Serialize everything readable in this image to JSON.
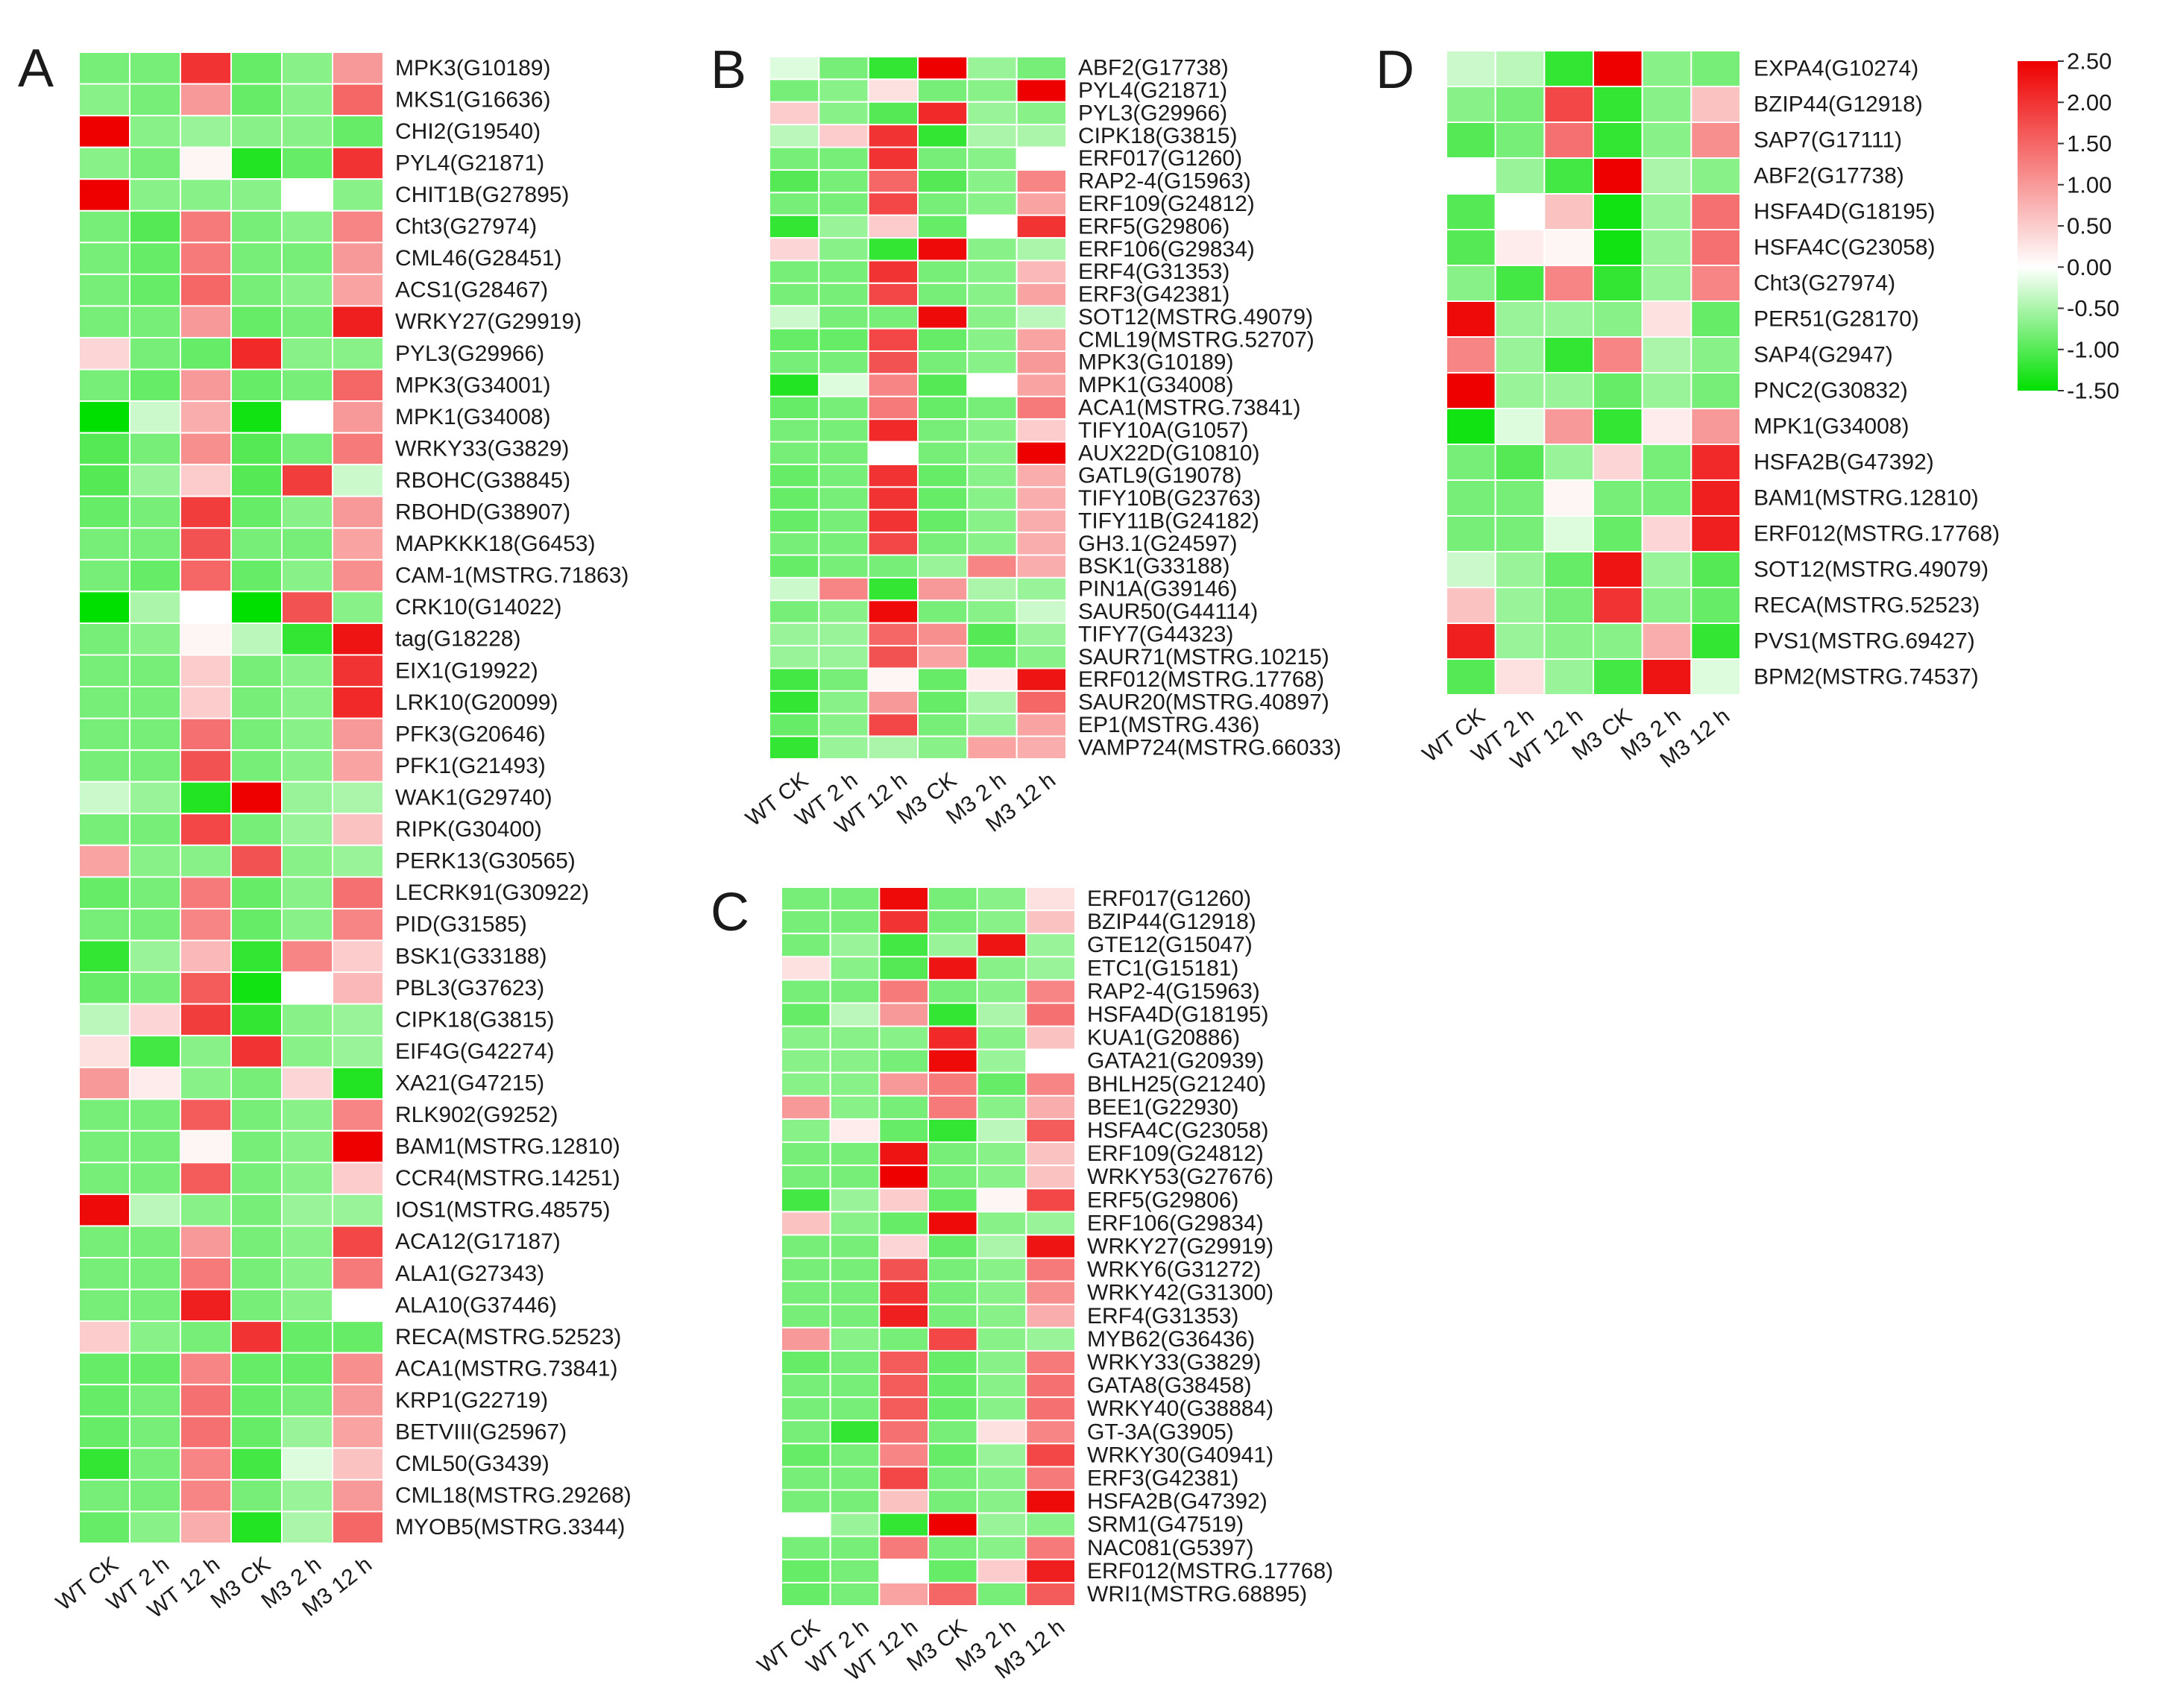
{
  "figure": {
    "colorscale": {
      "min": -1.5,
      "mid": 0,
      "max": 2.5,
      "low_color": "#00e000",
      "mid_color": "#ffffff",
      "high_color": "#ee0000",
      "ticks": [
        "2.50",
        "2.00",
        "1.50",
        "1.00",
        "0.50",
        "0.00",
        "-0.50",
        "-1.00",
        "-1.50"
      ]
    }
  },
  "chart_data": [
    {
      "type": "heatmap",
      "panel": "A",
      "title": "A",
      "columns": [
        "WT  CK",
        "WT 2 h",
        "WT 12 h",
        "M3  CK",
        "M3 2 h",
        "M3 12 h"
      ],
      "rows": [
        "MPK3(G10189)",
        "MKS1(G16636)",
        "CHI2(G19540)",
        "PYL4(G21871)",
        "CHIT1B(G27895)",
        "Cht3(G27974)",
        "CML46(G28451)",
        "ACS1(G28467)",
        "WRKY27(G29919)",
        "PYL3(G29966)",
        "MPK3(G34001)",
        "MPK1(G34008)",
        "WRKY33(G3829)",
        "RBOHC(G38845)",
        "RBOHD(G38907)",
        "MAPKKK18(G6453)",
        "CAM-1(MSTRG.71863)",
        "CRK10(G14022)",
        "tag(G18228)",
        "EIX1(G19922)",
        "LRK10(G20099)",
        "PFK3(G20646)",
        "PFK1(G21493)",
        "WAK1(G29740)",
        "RIPK(G30400)",
        "PERK13(G30565)",
        "LECRK91(G30922)",
        "PID(G31585)",
        "BSK1(G33188)",
        "PBL3(G37623)",
        "CIPK18(G3815)",
        "EIF4G(G42274)",
        "XA21(G47215)",
        "RLK902(G9252)",
        "BAM1(MSTRG.12810)",
        "CCR4(MSTRG.14251)",
        "IOS1(MSTRG.48575)",
        "ACA12(G17187)",
        "ALA1(G27343)",
        "ALA10(G37446)",
        "RECA(MSTRG.52523)",
        "ACA1(MSTRG.73841)",
        "KRP1(G22719)",
        "BETVIII(G25967)",
        "CML50(G3439)",
        "CML18(MSTRG.29268)",
        "MYOB5(MSTRG.3344)"
      ],
      "values": [
        [
          -0.8,
          -0.8,
          2.0,
          -0.9,
          -0.7,
          1.0
        ],
        [
          -0.7,
          -0.8,
          1.0,
          -0.9,
          -0.7,
          1.5
        ],
        [
          2.5,
          -0.7,
          -0.6,
          -0.7,
          -0.7,
          -0.9
        ],
        [
          -0.7,
          -0.8,
          0.1,
          -1.3,
          -0.9,
          2.0
        ],
        [
          2.5,
          -0.7,
          -0.7,
          -0.7,
          0.0,
          -0.7
        ],
        [
          -0.8,
          -1.0,
          1.3,
          -0.8,
          -0.7,
          1.2
        ],
        [
          -0.8,
          -0.9,
          1.3,
          -0.8,
          -0.8,
          1.0
        ],
        [
          -0.8,
          -0.9,
          1.5,
          -0.8,
          -0.7,
          0.9
        ],
        [
          -0.8,
          -0.8,
          1.0,
          -0.9,
          -0.8,
          2.2
        ],
        [
          0.4,
          -0.8,
          -0.9,
          2.1,
          -0.7,
          -0.7
        ],
        [
          -0.8,
          -0.9,
          1.0,
          -0.9,
          -0.8,
          1.5
        ],
        [
          -1.5,
          -0.3,
          0.8,
          -1.4,
          0.0,
          1.0
        ],
        [
          -1.0,
          -0.8,
          1.1,
          -1.0,
          -0.8,
          1.3
        ],
        [
          -1.0,
          -0.6,
          0.5,
          -1.0,
          1.9,
          -0.3
        ],
        [
          -0.9,
          -0.8,
          1.9,
          -0.9,
          -0.7,
          1.0
        ],
        [
          -0.8,
          -0.8,
          1.7,
          -0.8,
          -0.8,
          0.9
        ],
        [
          -0.8,
          -0.9,
          1.5,
          -0.9,
          -0.7,
          1.1
        ],
        [
          -1.5,
          -0.5,
          0.0,
          -1.5,
          1.7,
          -0.7
        ],
        [
          -0.8,
          -0.7,
          0.1,
          -0.4,
          -1.2,
          2.3
        ],
        [
          -0.8,
          -0.8,
          0.5,
          -0.8,
          -0.7,
          2.0
        ],
        [
          -0.8,
          -0.8,
          0.5,
          -0.8,
          -0.7,
          2.1
        ],
        [
          -0.8,
          -0.8,
          1.4,
          -0.8,
          -0.7,
          1.0
        ],
        [
          -0.8,
          -0.8,
          1.7,
          -0.8,
          -0.7,
          0.9
        ],
        [
          -0.3,
          -0.6,
          -1.3,
          2.5,
          -0.6,
          -0.5
        ],
        [
          -0.8,
          -0.8,
          1.8,
          -0.8,
          -0.6,
          0.6
        ],
        [
          0.9,
          -0.7,
          -0.7,
          1.7,
          -0.7,
          -0.6
        ],
        [
          -0.9,
          -0.8,
          1.3,
          -0.9,
          -0.7,
          1.4
        ],
        [
          -0.8,
          -0.8,
          1.2,
          -0.9,
          -0.7,
          1.2
        ],
        [
          -1.2,
          -0.6,
          0.7,
          -1.2,
          1.2,
          0.5
        ],
        [
          -0.9,
          -0.8,
          1.6,
          -1.4,
          0.0,
          0.7
        ],
        [
          -0.4,
          0.4,
          1.9,
          -1.2,
          -0.7,
          -0.6
        ],
        [
          0.3,
          -1.1,
          -0.7,
          2.0,
          -0.7,
          -0.6
        ],
        [
          1.0,
          0.2,
          -0.7,
          -0.8,
          0.4,
          -1.3
        ],
        [
          -0.8,
          -0.8,
          1.6,
          -0.8,
          -0.7,
          1.2
        ],
        [
          -0.8,
          -0.8,
          0.1,
          -0.8,
          -0.7,
          2.5
        ],
        [
          -0.8,
          -0.8,
          1.6,
          -0.8,
          -0.7,
          0.5
        ],
        [
          2.4,
          -0.4,
          -0.7,
          -0.8,
          -0.6,
          -0.6
        ],
        [
          -0.8,
          -0.8,
          1.0,
          -0.8,
          -0.7,
          1.8
        ],
        [
          -0.8,
          -0.8,
          1.3,
          -0.8,
          -0.7,
          1.3
        ],
        [
          -0.8,
          -0.8,
          2.2,
          -0.8,
          -0.7,
          0.0
        ],
        [
          0.5,
          -0.7,
          -0.8,
          2.0,
          -0.9,
          -0.9
        ],
        [
          -0.9,
          -0.9,
          1.2,
          -0.9,
          -0.9,
          1.1
        ],
        [
          -0.9,
          -0.8,
          1.4,
          -0.9,
          -0.8,
          1.0
        ],
        [
          -0.9,
          -0.8,
          1.4,
          -0.9,
          -0.6,
          0.9
        ],
        [
          -1.2,
          -0.8,
          1.2,
          -1.1,
          -0.2,
          0.6
        ],
        [
          -0.8,
          -0.8,
          1.2,
          -0.8,
          -0.6,
          1.0
        ],
        [
          -0.9,
          -0.7,
          0.8,
          -1.3,
          -0.5,
          1.5
        ]
      ]
    },
    {
      "type": "heatmap",
      "panel": "B",
      "title": "B",
      "columns": [
        "WT  CK",
        "WT 2 h",
        "WT 12 h",
        "M3  CK",
        "M3 2 h",
        "M3 12 h"
      ],
      "rows": [
        "ABF2(G17738)",
        "PYL4(G21871)",
        "PYL3(G29966)",
        "CIPK18(G3815)",
        "ERF017(G1260)",
        "RAP2-4(G15963)",
        "ERF109(G24812)",
        "ERF5(G29806)",
        "ERF106(G29834)",
        "ERF4(G31353)",
        "ERF3(G42381)",
        "SOT12(MSTRG.49079)",
        "CML19(MSTRG.52707)",
        "MPK3(G10189)",
        "MPK1(G34008)",
        "ACA1(MSTRG.73841)",
        "TIFY10A(G1057)",
        "AUX22D(G10810)",
        "GATL9(G19078)",
        "TIFY10B(G23763)",
        "TIFY11B(G24182)",
        "GH3.1(G24597)",
        "BSK1(G33188)",
        "PIN1A(G39146)",
        "SAUR50(G44114)",
        "TIFY7(G44323)",
        "SAUR71(MSTRG.10215)",
        "ERF012(MSTRG.17768)",
        "SAUR20(MSTRG.40897)",
        "EP1(MSTRG.436)",
        "VAMP724(MSTRG.66033)"
      ],
      "values": [
        [
          -0.2,
          -0.8,
          -1.2,
          2.5,
          -0.6,
          -0.8
        ],
        [
          -0.8,
          -0.7,
          0.3,
          -0.8,
          -0.7,
          2.5
        ],
        [
          0.5,
          -0.7,
          -1.0,
          2.1,
          -0.6,
          -0.7
        ],
        [
          -0.4,
          0.5,
          2.0,
          -1.2,
          -0.5,
          -0.5
        ],
        [
          -0.8,
          -0.8,
          2.0,
          -0.8,
          -0.7,
          0.0
        ],
        [
          -1.0,
          -0.8,
          1.5,
          -1.0,
          -0.7,
          1.2
        ],
        [
          -0.8,
          -0.8,
          1.8,
          -0.8,
          -0.7,
          0.9
        ],
        [
          -1.2,
          -0.6,
          0.5,
          -0.9,
          0.0,
          2.0
        ],
        [
          0.4,
          -0.7,
          -1.2,
          2.4,
          -0.7,
          -0.5
        ],
        [
          -0.8,
          -0.8,
          2.0,
          -0.8,
          -0.7,
          0.7
        ],
        [
          -0.8,
          -0.8,
          1.8,
          -0.8,
          -0.7,
          0.9
        ],
        [
          -0.3,
          -0.8,
          -0.8,
          2.4,
          -0.7,
          -0.4
        ],
        [
          -0.9,
          -0.9,
          1.8,
          -0.9,
          -0.7,
          0.9
        ],
        [
          -0.8,
          -0.8,
          1.7,
          -0.8,
          -0.7,
          1.0
        ],
        [
          -1.3,
          -0.2,
          1.2,
          -1.0,
          0.0,
          0.9
        ],
        [
          -0.9,
          -0.8,
          1.3,
          -0.9,
          -0.8,
          1.3
        ],
        [
          -0.8,
          -0.8,
          2.1,
          -0.8,
          -0.7,
          0.5
        ],
        [
          -0.8,
          -0.8,
          0.0,
          -0.8,
          -0.7,
          2.5
        ],
        [
          -0.9,
          -0.8,
          2.0,
          -0.9,
          -0.7,
          0.8
        ],
        [
          -0.9,
          -0.8,
          2.0,
          -0.9,
          -0.7,
          0.8
        ],
        [
          -0.9,
          -0.8,
          2.0,
          -0.9,
          -0.7,
          0.8
        ],
        [
          -0.8,
          -0.8,
          1.8,
          -0.8,
          -0.7,
          0.8
        ],
        [
          -0.9,
          -0.8,
          -0.8,
          -0.6,
          1.2,
          0.8
        ],
        [
          -0.3,
          1.2,
          -1.2,
          1.0,
          -0.5,
          -0.6
        ],
        [
          -0.8,
          -0.7,
          2.4,
          -0.8,
          -0.7,
          -0.3
        ],
        [
          -0.6,
          -0.6,
          1.5,
          1.1,
          -1.0,
          -0.6
        ],
        [
          -0.6,
          -0.6,
          1.7,
          0.9,
          -0.9,
          -0.7
        ],
        [
          -1.1,
          -0.8,
          0.1,
          -0.9,
          0.2,
          2.3
        ],
        [
          -1.2,
          -0.7,
          1.0,
          -0.9,
          -0.5,
          1.5
        ],
        [
          -0.9,
          -0.7,
          1.8,
          -0.8,
          -0.6,
          0.9
        ],
        [
          -1.2,
          -0.6,
          -0.5,
          -0.7,
          0.9,
          0.8
        ]
      ]
    },
    {
      "type": "heatmap",
      "panel": "C",
      "title": "C",
      "columns": [
        "WT  CK",
        "WT 2 h",
        "WT 12 h",
        "M3  CK",
        "M3 2 h",
        "M3 12 h"
      ],
      "rows": [
        "ERF017(G1260)",
        "BZIP44(G12918)",
        "GTE12(G15047)",
        "ETC1(G15181)",
        "RAP2-4(G15963)",
        "HSFA4D(G18195)",
        "KUA1(G20886)",
        "GATA21(G20939)",
        "BHLH25(G21240)",
        "BEE1(G22930)",
        "HSFA4C(G23058)",
        "ERF109(G24812)",
        "WRKY53(G27676)",
        "ERF5(G29806)",
        "ERF106(G29834)",
        "WRKY27(G29919)",
        "WRKY6(G31272)",
        "WRKY42(G31300)",
        "ERF4(G31353)",
        "MYB62(G36436)",
        "WRKY33(G3829)",
        "GATA8(G38458)",
        "WRKY40(G38884)",
        "GT-3A(G3905)",
        "WRKY30(G40941)",
        "ERF3(G42381)",
        "HSFA2B(G47392)",
        "SRM1(G47519)",
        "NAC081(G5397)",
        "ERF012(MSTRG.17768)",
        "WRI1(MSTRG.68895)"
      ],
      "values": [
        [
          -0.8,
          -0.8,
          2.4,
          -0.8,
          -0.7,
          0.3
        ],
        [
          -0.8,
          -0.8,
          2.0,
          -0.8,
          -0.7,
          0.6
        ],
        [
          -0.8,
          -0.6,
          -1.1,
          -0.6,
          2.3,
          -0.6
        ],
        [
          0.3,
          -0.7,
          -1.0,
          2.3,
          -0.7,
          -0.6
        ],
        [
          -0.8,
          -0.8,
          1.3,
          -0.8,
          -0.7,
          1.2
        ],
        [
          -0.9,
          -0.4,
          1.0,
          -1.2,
          -0.5,
          1.4
        ],
        [
          -0.7,
          -0.7,
          -0.7,
          2.1,
          -0.7,
          0.6
        ],
        [
          -0.7,
          -0.7,
          -0.8,
          2.4,
          -0.6,
          0.0
        ],
        [
          -0.7,
          -0.7,
          1.0,
          1.3,
          -0.9,
          1.2
        ],
        [
          1.0,
          -0.7,
          -0.8,
          1.3,
          -0.7,
          0.8
        ],
        [
          -0.7,
          0.2,
          -0.9,
          -1.2,
          -0.4,
          1.6
        ],
        [
          -0.8,
          -0.8,
          2.3,
          -0.8,
          -0.7,
          0.6
        ],
        [
          -0.8,
          -0.8,
          2.5,
          -0.8,
          -0.7,
          0.6
        ],
        [
          -1.1,
          -0.6,
          0.5,
          -0.9,
          0.1,
          1.8
        ],
        [
          0.6,
          -0.7,
          -0.9,
          2.4,
          -0.7,
          -0.6
        ],
        [
          -0.8,
          -0.8,
          0.4,
          -0.9,
          -0.5,
          2.3
        ],
        [
          -0.8,
          -0.8,
          1.7,
          -0.8,
          -0.7,
          1.3
        ],
        [
          -0.8,
          -0.8,
          2.0,
          -0.8,
          -0.7,
          1.1
        ],
        [
          -0.8,
          -0.8,
          2.2,
          -0.8,
          -0.7,
          0.8
        ],
        [
          1.0,
          -0.7,
          -0.8,
          1.8,
          -0.7,
          -0.6
        ],
        [
          -0.9,
          -0.8,
          1.6,
          -0.9,
          -0.7,
          1.3
        ],
        [
          -0.8,
          -0.8,
          1.6,
          -0.9,
          -0.7,
          1.4
        ],
        [
          -0.8,
          -0.8,
          1.6,
          -0.9,
          -0.7,
          1.4
        ],
        [
          -0.8,
          -1.2,
          1.4,
          -0.8,
          0.3,
          1.2
        ],
        [
          -0.9,
          -0.8,
          1.2,
          -0.9,
          -0.6,
          1.8
        ],
        [
          -0.8,
          -0.8,
          1.8,
          -0.8,
          -0.7,
          1.3
        ],
        [
          -0.8,
          -0.8,
          0.6,
          -0.8,
          -0.7,
          2.4
        ],
        [
          0.0,
          -0.6,
          -1.2,
          2.5,
          -0.6,
          -0.7
        ],
        [
          -0.8,
          -0.8,
          1.3,
          -0.8,
          -0.7,
          1.3
        ],
        [
          -0.9,
          -0.8,
          0.0,
          -0.9,
          0.5,
          2.2
        ],
        [
          -0.9,
          -0.8,
          0.9,
          1.5,
          -0.8,
          1.6
        ]
      ]
    },
    {
      "type": "heatmap",
      "panel": "D",
      "title": "D",
      "columns": [
        "WT  CK",
        "WT 2 h",
        "WT 12 h",
        "M3  CK",
        "M3 2 h",
        "M3 12 h"
      ],
      "rows": [
        "EXPA4(G10274)",
        "BZIP44(G12918)",
        "SAP7(G17111)",
        "ABF2(G17738)",
        "HSFA4D(G18195)",
        "HSFA4C(G23058)",
        "Cht3(G27974)",
        "PER51(G28170)",
        "SAP4(G2947)",
        "PNC2(G30832)",
        "MPK1(G34008)",
        "HSFA2B(G47392)",
        "BAM1(MSTRG.12810)",
        "ERF012(MSTRG.17768)",
        "SOT12(MSTRG.49079)",
        "RECA(MSTRG.52523)",
        "PVS1(MSTRG.69427)",
        "BPM2(MSTRG.74537)"
      ],
      "values": [
        [
          -0.3,
          -0.4,
          -1.2,
          2.5,
          -0.7,
          -0.8
        ],
        [
          -0.7,
          -0.8,
          1.8,
          -1.2,
          -0.7,
          0.6
        ],
        [
          -1.0,
          -0.8,
          1.4,
          -1.2,
          -0.7,
          1.1
        ],
        [
          0.0,
          -0.6,
          -1.1,
          2.5,
          -0.5,
          -0.7
        ],
        [
          -1.0,
          0.0,
          0.6,
          -1.4,
          -0.6,
          1.4
        ],
        [
          -1.0,
          0.2,
          0.1,
          -1.4,
          -0.6,
          1.4
        ],
        [
          -0.7,
          -1.1,
          1.2,
          -1.2,
          -0.6,
          1.2
        ],
        [
          2.4,
          -0.6,
          -0.6,
          -0.7,
          0.3,
          -0.9
        ],
        [
          1.2,
          -0.6,
          -1.2,
          1.2,
          -0.5,
          -0.7
        ],
        [
          2.5,
          -0.6,
          -0.6,
          -0.9,
          -0.6,
          -0.8
        ],
        [
          -1.4,
          -0.2,
          1.0,
          -1.2,
          0.2,
          1.0
        ],
        [
          -0.8,
          -1.0,
          -0.6,
          0.4,
          -0.8,
          2.1
        ],
        [
          -0.8,
          -0.8,
          0.1,
          -0.8,
          -0.8,
          2.2
        ],
        [
          -0.8,
          -0.8,
          -0.2,
          -0.9,
          0.4,
          2.2
        ],
        [
          -0.3,
          -0.6,
          -0.9,
          2.3,
          -0.6,
          -1.0
        ],
        [
          0.6,
          -0.6,
          -0.8,
          2.0,
          -0.7,
          -0.9
        ],
        [
          2.2,
          -0.6,
          -0.7,
          -0.7,
          0.8,
          -1.2
        ],
        [
          -1.0,
          0.3,
          -0.6,
          -1.1,
          2.3,
          -0.2
        ]
      ]
    }
  ]
}
